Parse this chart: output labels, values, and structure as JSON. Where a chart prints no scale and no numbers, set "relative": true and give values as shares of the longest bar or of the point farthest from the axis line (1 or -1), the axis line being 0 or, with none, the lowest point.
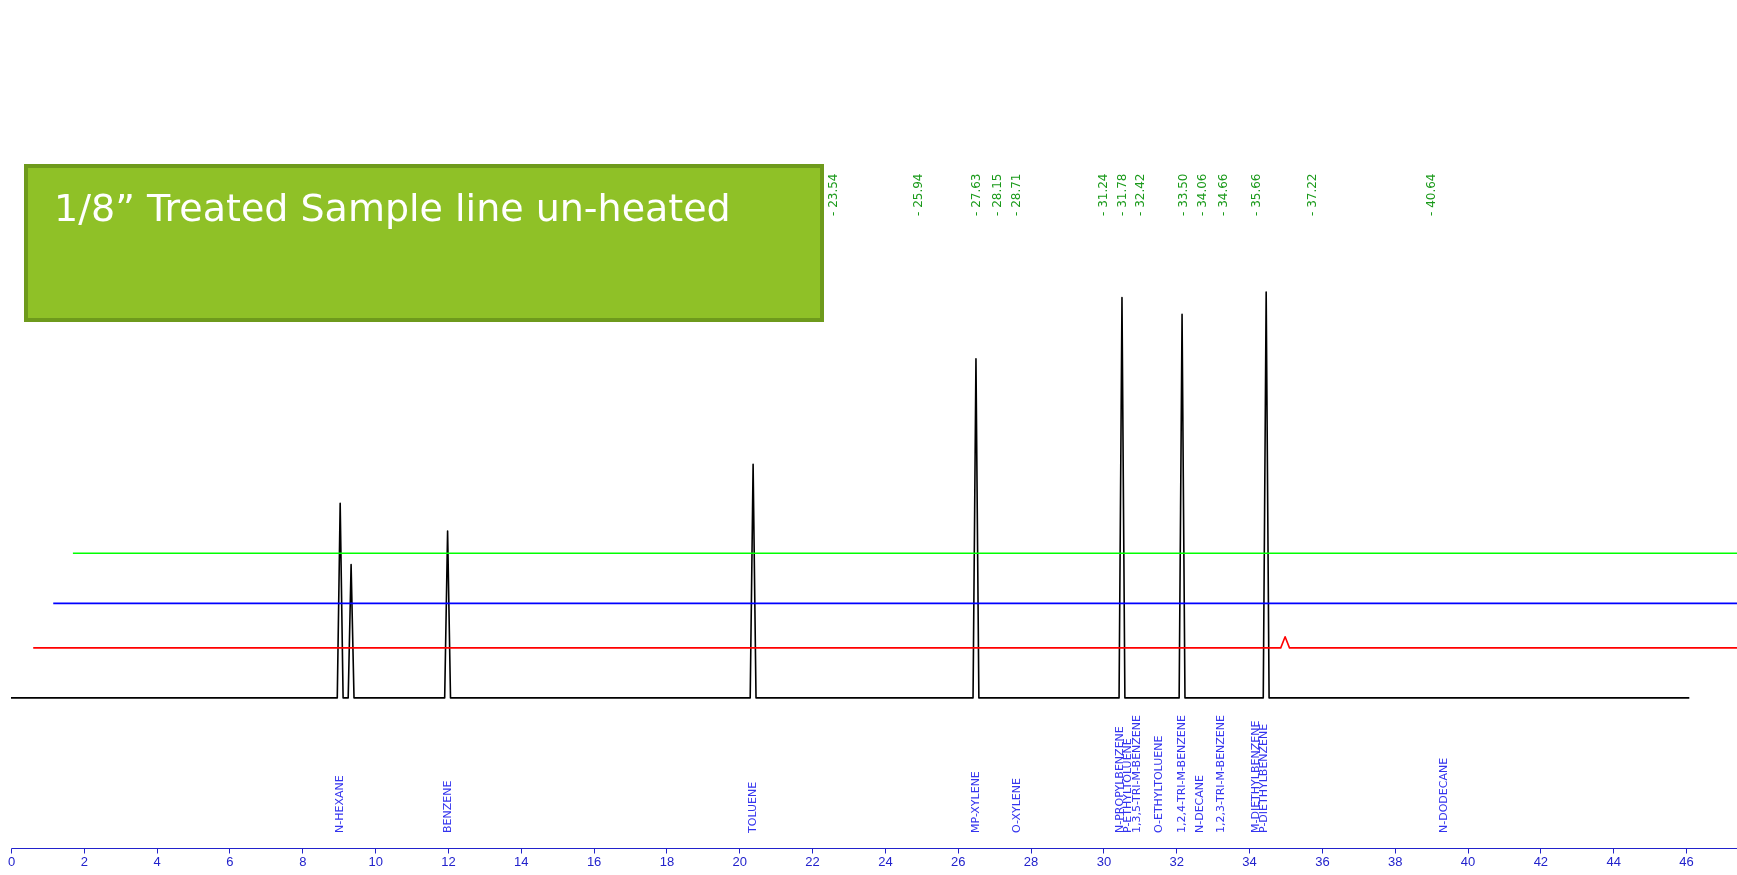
{
  "chart_data": {
    "type": "line",
    "title": "1/8” Treated Sample line un-heated",
    "relative": true,
    "xlim": [
      0,
      47.4
    ],
    "xticks": [
      0,
      2,
      4,
      6,
      8,
      10,
      12,
      14,
      16,
      18,
      20,
      22,
      24,
      26,
      28,
      30,
      32,
      34,
      36,
      38,
      40,
      42,
      44,
      46
    ],
    "series": [
      {
        "color": "#000000",
        "x": [
          0,
          8.96,
          9.04,
          9.12,
          9.26,
          9.34,
          9.42,
          11.91,
          11.99,
          12.07,
          20.3,
          20.38,
          20.46,
          26.42,
          26.5,
          26.58,
          30.43,
          30.51,
          30.59,
          32.08,
          32.16,
          32.24,
          34.39,
          34.47,
          34.55,
          46.09
        ],
        "values": [
          0.27,
          0.27,
          0.62,
          0.27,
          0.27,
          0.51,
          0.27,
          0.27,
          0.57,
          0.27,
          0.27,
          0.69,
          0.27,
          0.27,
          0.88,
          0.27,
          0.27,
          0.99,
          0.27,
          0.27,
          0.96,
          0.27,
          0.27,
          1.0,
          0.27,
          0.27
        ]
      },
      {
        "color": "#ff0000",
        "x": [
          0.61,
          34.87,
          34.99,
          35.11,
          47.4
        ],
        "values": [
          0.36,
          0.36,
          0.38,
          0.36,
          0.36
        ]
      },
      {
        "color": "#0000ff",
        "x": [
          1.16,
          47.4
        ],
        "values": [
          0.44,
          0.44
        ]
      },
      {
        "color": "#00ff00",
        "x": [
          1.7,
          47.4
        ],
        "values": [
          0.53,
          0.53
        ]
      }
    ],
    "annotations": [
      "- 23.54",
      "- 25.94",
      "- 27.63",
      "- 28.15",
      "- 28.71",
      "- 31.24",
      "- 31.78",
      "- 32.42",
      "- 33.50",
      "- 34.06",
      "- 34.66",
      "- 35.66",
      "- 37.22",
      "- 40.64",
      "N-HEXANE",
      "BENZENE",
      "TOLUENE",
      "MP-XYLENE",
      "O-XYLENE",
      "N-PROPYLBENZENE",
      "P-ETHYLTOLUENE",
      "1,3,5-TRI-M-BENZENE",
      "O-ETHYLTOLUENE",
      "1,2,4-TRI-M-BENZENE",
      "N-DECANE",
      "1,2,3-TRI-M-BENZENE",
      "M-DIETHYLBENZENE",
      "P-DIETHYLBENZENE",
      "N-DODECANE"
    ]
  }
}
